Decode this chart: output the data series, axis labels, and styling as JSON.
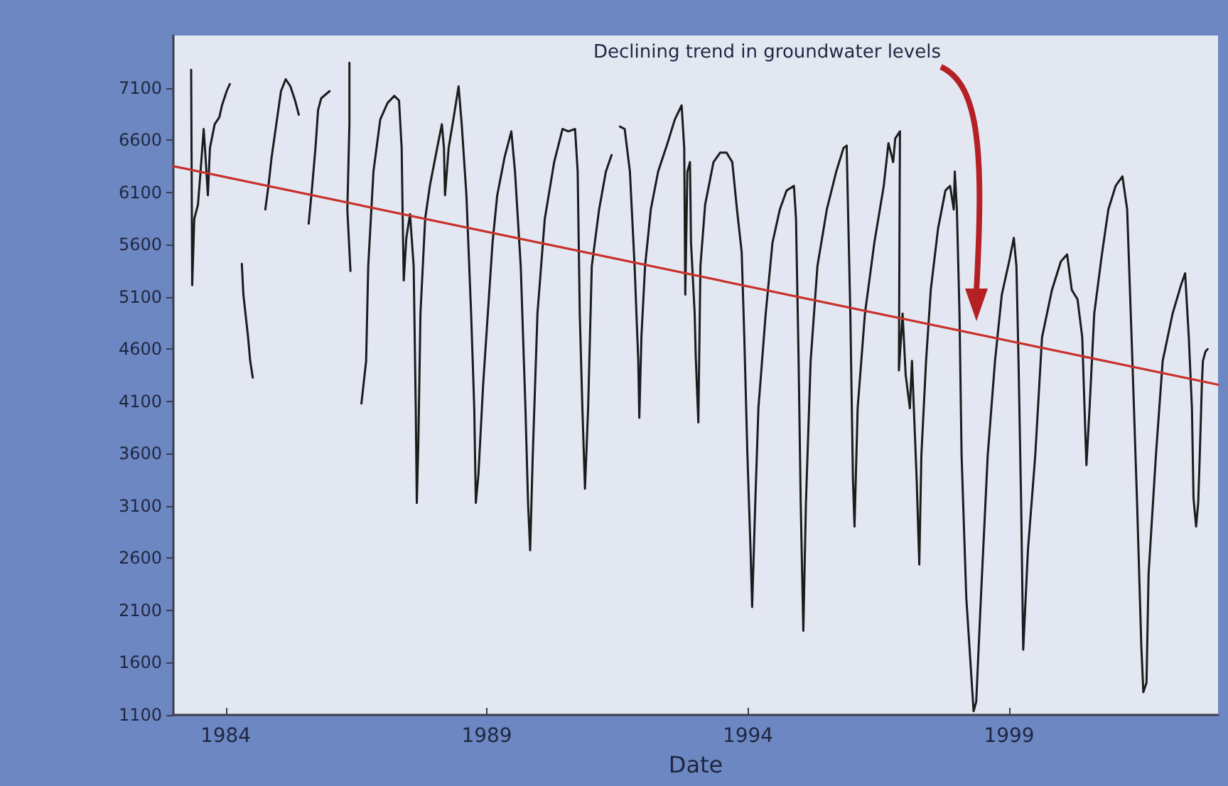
{
  "chart_data": {
    "type": "line",
    "xlabel": "Date",
    "xlim": [
      1983,
      2003
    ],
    "xticks": [
      1984,
      1989,
      1994,
      1999
    ],
    "ylim": [
      1100,
      7600
    ],
    "yticks": [
      1100,
      1600,
      2100,
      2600,
      3100,
      3600,
      4100,
      4600,
      5100,
      5600,
      6100,
      6600,
      7100
    ],
    "grid": false,
    "marker": "none",
    "line_style": "solid",
    "annotations": [
      "Declining trend in groundwater levels"
    ],
    "series": [
      {
        "color": "#1c1c1c",
        "x": [
          1983.34,
          1983.36,
          1983.4,
          1983.47,
          1983.52,
          1983.58,
          1983.61,
          1983.66,
          1983.7,
          1983.79,
          1983.88,
          1983.93,
          1984.02,
          1984.08,
          1984.2,
          1984.31,
          1984.34,
          1984.38,
          1984.43,
          1984.47,
          1984.52,
          1984.6,
          1984.76,
          1984.82,
          1984.88,
          1984.97,
          1985.06,
          1985.15,
          1985.24,
          1985.33,
          1985.4,
          1985.5,
          1985.59,
          1985.65,
          1985.72,
          1985.77,
          1985.83,
          1985.99,
          1986.2,
          1986.37,
          1986.37,
          1986.33,
          1986.39,
          1986.5,
          1986.6,
          1986.69,
          1986.73,
          1986.83,
          1986.96,
          1987.1,
          1987.23,
          1987.32,
          1987.37,
          1987.39,
          1987.41,
          1987.46,
          1987.53,
          1987.6,
          1987.64,
          1987.66,
          1987.69,
          1987.73,
          1987.82,
          1987.91,
          1988.05,
          1988.14,
          1988.18,
          1988.2,
          1988.27,
          1988.36,
          1988.46,
          1988.52,
          1988.61,
          1988.7,
          1988.76,
          1988.79,
          1988.84,
          1988.93,
          1989.02,
          1989.11,
          1989.2,
          1989.34,
          1989.47,
          1989.54,
          1989.65,
          1989.74,
          1989.79,
          1989.83,
          1989.88,
          1989.97,
          1990.11,
          1990.29,
          1990.45,
          1990.56,
          1990.69,
          1990.74,
          1990.78,
          1990.83,
          1990.88,
          1990.94,
          1991.01,
          1991.15,
          1991.28,
          1991.39,
          1991.47,
          1991.55,
          1991.64,
          1991.74,
          1991.83,
          1991.9,
          1991.92,
          1991.96,
          1992.03,
          1992.14,
          1992.28,
          1992.46,
          1992.6,
          1992.73,
          1992.78,
          1992.8,
          1992.84,
          1992.89,
          1992.91,
          1992.98,
          1993.0,
          1993.05,
          1993.09,
          1993.18,
          1993.34,
          1993.47,
          1993.59,
          1993.7,
          1993.79,
          1993.88,
          1993.93,
          1993.99,
          1994.05,
          1994.08,
          1994.14,
          1994.2,
          1994.34,
          1994.47,
          1994.61,
          1994.74,
          1994.88,
          1994.92,
          1994.97,
          1995.01,
          1995.06,
          1995.11,
          1995.2,
          1995.33,
          1995.51,
          1995.69,
          1995.83,
          1995.89,
          1995.91,
          1995.96,
          1996.01,
          1996.04,
          1996.1,
          1996.24,
          1996.42,
          1996.6,
          1996.69,
          1996.78,
          1996.82,
          1996.91,
          1996.89,
          1996.96,
          1997.02,
          1997.1,
          1997.14,
          1997.23,
          1997.28,
          1997.32,
          1997.41,
          1997.5,
          1997.64,
          1997.78,
          1997.87,
          1997.94,
          1997.96,
          1998.0,
          1998.05,
          1998.09,
          1998.18,
          1998.32,
          1998.37,
          1998.46,
          1998.59,
          1998.73,
          1998.86,
          1999.0,
          1999.09,
          1999.14,
          1999.18,
          1999.23,
          1999.27,
          1999.36,
          1999.5,
          1999.63,
          1999.82,
          1999.99,
          2000.11,
          2000.2,
          2000.31,
          2000.4,
          2000.45,
          2000.48,
          2000.54,
          2000.63,
          2000.77,
          2000.9,
          2001.04,
          2001.17,
          2001.26,
          2001.36,
          2001.45,
          2001.53,
          2001.57,
          2001.63,
          2001.67,
          2001.81,
          2001.94,
          2002.13,
          2002.29,
          2002.37,
          2002.44,
          2002.5,
          2002.53,
          2002.58,
          2002.62,
          2002.65,
          2002.69,
          2002.71,
          2002.76,
          2002.8
        ],
        "values": [
          7272,
          5211,
          5846,
          5981,
          6298,
          6706,
          6480,
          6072,
          6525,
          6751,
          6819,
          6932,
          7068,
          7136,
          null,
          5415,
          5121,
          4940,
          4713,
          4487,
          4328,
          null,
          5936,
          6162,
          6434,
          6751,
          7068,
          7182,
          7114,
          6978,
          6842,
          null,
          5800,
          6117,
          6525,
          6887,
          7000,
          7068,
          null,
          7340,
          6751,
          5936,
          5347,
          null,
          4079,
          4487,
          5393,
          6298,
          6797,
          6955,
          7023,
          6978,
          6525,
          5846,
          5257,
          5664,
          5891,
          5393,
          4034,
          3128,
          3717,
          4940,
          5846,
          6162,
          6525,
          6751,
          6525,
          6072,
          6525,
          6797,
          7114,
          6751,
          6072,
          4940,
          4034,
          3128,
          3400,
          4260,
          4940,
          5619,
          6072,
          6434,
          6683,
          6298,
          5393,
          4034,
          3128,
          2675,
          3581,
          4940,
          5846,
          6389,
          6706,
          6683,
          6706,
          6298,
          4940,
          4034,
          3264,
          4034,
          5393,
          5936,
          6298,
          6457,
          null,
          6729,
          6706,
          6298,
          5393,
          4487,
          3943,
          4713,
          5393,
          5936,
          6298,
          6570,
          6797,
          6932,
          6525,
          5121,
          6298,
          6389,
          5619,
          4940,
          4532,
          3898,
          5393,
          5981,
          6389,
          6480,
          6480,
          6389,
          5936,
          5528,
          4713,
          3581,
          2675,
          2132,
          3128,
          4034,
          4940,
          5619,
          5936,
          6117,
          6162,
          5846,
          4487,
          3128,
          1905,
          3128,
          4487,
          5393,
          5936,
          6298,
          6525,
          6547,
          6072,
          4940,
          3355,
          2902,
          4034,
          4940,
          5619,
          6162,
          6570,
          6389,
          6615,
          6683,
          4396,
          4940,
          4351,
          4034,
          4487,
          3355,
          2539,
          3581,
          4487,
          5166,
          5755,
          6117,
          6162,
          5936,
          6298,
          5936,
          4940,
          3581,
          2222,
          1135,
          1226,
          2222,
          3581,
          4487,
          5121,
          5438,
          5664,
          5393,
          4487,
          3128,
          1724,
          2675,
          3581,
          4713,
          5166,
          5438,
          5506,
          5166,
          5076,
          4713,
          3943,
          3490,
          4034,
          4940,
          5483,
          5936,
          6162,
          6253,
          5936,
          4487,
          3128,
          1770,
          1317,
          1408,
          2449,
          3581,
          4487,
          4940,
          5211,
          5325,
          4713,
          4034,
          3174,
          2902,
          3128,
          3581,
          4260,
          4487,
          4577,
          4600
        ]
      },
      {
        "type": "line",
        "color": "#c8302a",
        "x": [
          1983,
          2003
        ],
        "values": [
          6350,
          4260
        ]
      }
    ]
  }
}
